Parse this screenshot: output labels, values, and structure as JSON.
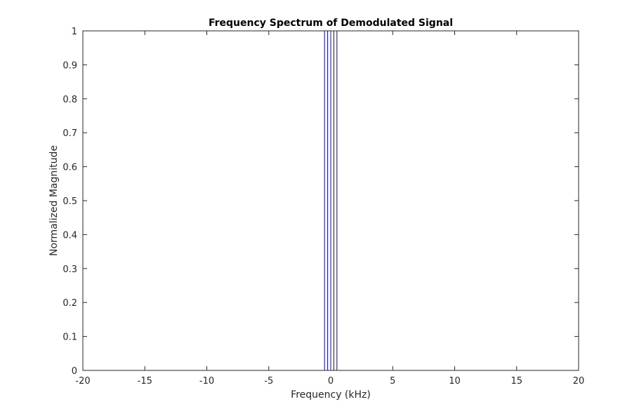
{
  "chart_data": {
    "type": "line",
    "title": "Frequency Spectrum of Demodulated Signal",
    "xlabel": "Frequency (kHz)",
    "ylabel": "Normalized Magnitude",
    "xlim": [
      -20,
      20
    ],
    "ylim": [
      0,
      1
    ],
    "grid": false,
    "legend": "none",
    "x_ticks": [
      -20,
      -15,
      -10,
      -5,
      0,
      5,
      10,
      15,
      20
    ],
    "x_tick_labels": [
      "-20",
      "-15",
      "-10",
      "-5",
      "0",
      "5",
      "10",
      "15",
      "20"
    ],
    "y_ticks": [
      0,
      0.1,
      0.2,
      0.3,
      0.4,
      0.5,
      0.6,
      0.7,
      0.8,
      0.9,
      1
    ],
    "y_tick_labels": [
      "0",
      "0.1",
      "0.2",
      "0.3",
      "0.4",
      "0.5",
      "0.6",
      "0.7",
      "0.8",
      "0.9",
      "1"
    ],
    "colors": {
      "line": "#0000cc",
      "axes": "#262626"
    },
    "series": [
      {
        "x": [
          -20,
          -0.5,
          -0.5,
          -0.5,
          -0.25,
          -0.25,
          -0.25,
          0,
          0,
          0,
          0.25,
          0.25,
          0.25,
          0.5,
          0.5,
          0.5,
          20
        ],
        "y": [
          0,
          0,
          1,
          0,
          0,
          1,
          0,
          0,
          1,
          0,
          0,
          1,
          0,
          0,
          1,
          0,
          0
        ]
      }
    ]
  }
}
